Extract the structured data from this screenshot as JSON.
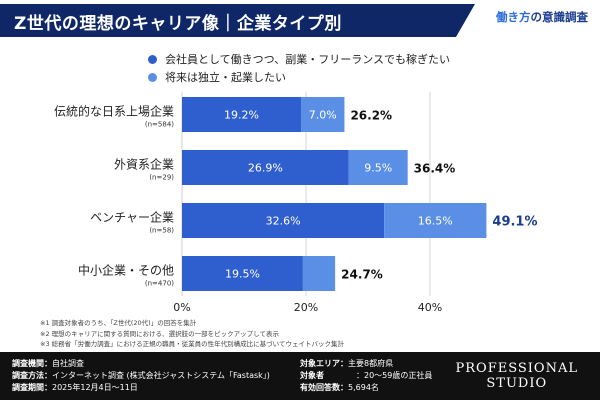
{
  "header": {
    "title": "Z世代の理想のキャリア像｜企業タイプ別",
    "brand_highlight": "働き方",
    "brand_rest": "の意識調査"
  },
  "colors": {
    "navy": "#0f2766",
    "series1": "#2f5fcf",
    "series2": "#5b8fe6",
    "highlight_total": "#1a3d8f"
  },
  "chart_data": {
    "type": "bar",
    "orientation": "horizontal",
    "stacked": true,
    "categories": [
      "伝統的な日系上場企業",
      "外資系企業",
      "ベンチャー企業",
      "中小企業・その他"
    ],
    "category_counts": [
      "(n=584)",
      "(n=29)",
      "(n=58)",
      "(n=470)"
    ],
    "series": [
      {
        "name": "会社員として働きつつ、副業・フリーランスでも稼ぎたい",
        "values": [
          19.2,
          26.9,
          32.6,
          19.5
        ],
        "labels": [
          "19.2%",
          "26.9%",
          "32.6%",
          "19.5%"
        ]
      },
      {
        "name": "将来は独立・起業したい",
        "values": [
          7.0,
          9.5,
          16.5,
          5.2
        ],
        "labels": [
          "7.0%",
          "9.5%",
          "16.5%",
          ""
        ]
      }
    ],
    "totals": [
      "26.2%",
      "36.4%",
      "49.1%",
      "24.7%"
    ],
    "highlight_index": 2,
    "xlim": [
      0,
      40
    ],
    "xticks": [
      0,
      20,
      40
    ],
    "xtick_labels": [
      "0%",
      "20%",
      "40%"
    ],
    "grid": true
  },
  "notes": [
    "※1 調査対象者のうち、「Z世代(20代)」の回答を集計",
    "※2 理想のキャリアに関する質問における、選択肢の一部をピックアップして表示",
    "※3 総務省「労働力調査」における正規の職員・従業員の性年代別構成比に基づいてウェイトバック集計"
  ],
  "footer": {
    "left": [
      {
        "key": "調査機関：",
        "value": "自社調査"
      },
      {
        "key": "調査方法：",
        "value": "インターネット調査 (株式会社ジャストシステム「Fastask」)"
      },
      {
        "key": "調査期間：",
        "value": "2025年12月4日〜11日"
      }
    ],
    "right": [
      {
        "key": "対象エリア：",
        "value": "主要8都府県"
      },
      {
        "key": "対象者",
        "value": "：20〜59歳の正社員"
      },
      {
        "key": "有効回答数：",
        "value": "5,694名"
      }
    ],
    "logo_line1": "PROFESSIONAL",
    "logo_line2": "STUDIO"
  }
}
